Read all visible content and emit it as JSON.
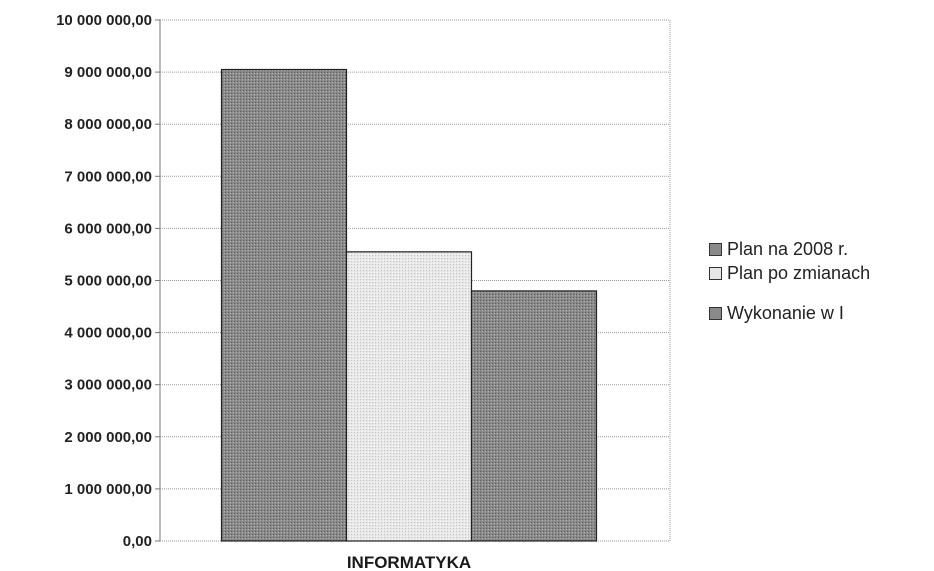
{
  "chart_data": {
    "type": "bar",
    "categories": [
      "INFORMATYKA"
    ],
    "series": [
      {
        "name": "Plan na 2008 r.",
        "values": [
          9050000
        ],
        "color": "#8a8a8a"
      },
      {
        "name": "Plan po zmianach",
        "values": [
          5550000
        ],
        "color": "#e6e6e6"
      },
      {
        "name": "Wykonanie w I",
        "values": [
          4800000
        ],
        "color": "#8a8a8a"
      }
    ],
    "ylim": [
      0,
      10000000
    ],
    "yticks": [
      "0,00",
      "1 000 000,00",
      "2 000 000,00",
      "3 000 000,00",
      "4 000 000,00",
      "5 000 000,00",
      "6 000 000,00",
      "7 000 000,00",
      "8 000 000,00",
      "9 000 000,00",
      "10 000 000,00"
    ],
    "grid": true,
    "legend": "right",
    "title": "",
    "xlabel": "",
    "ylabel": ""
  }
}
